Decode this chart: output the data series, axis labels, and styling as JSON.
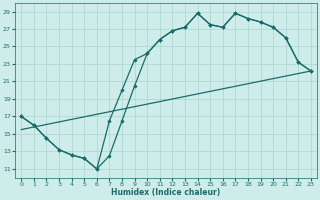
{
  "xlabel": "Humidex (Indice chaleur)",
  "bg_color": "#ceecea",
  "grid_color": "#a8d5d1",
  "line_color": "#1a6b6b",
  "xlim": [
    -0.5,
    23.5
  ],
  "ylim": [
    10,
    30
  ],
  "yticks": [
    11,
    13,
    15,
    17,
    19,
    21,
    23,
    25,
    27,
    29
  ],
  "xticks": [
    0,
    1,
    2,
    3,
    4,
    5,
    6,
    7,
    8,
    9,
    10,
    11,
    12,
    13,
    14,
    15,
    16,
    17,
    18,
    19,
    20,
    21,
    22,
    23
  ],
  "line1_x": [
    0,
    1,
    2,
    3,
    4,
    5,
    6,
    7,
    8,
    9,
    10,
    11,
    12,
    13,
    14,
    15,
    16,
    17,
    18,
    19,
    20,
    21,
    22,
    23
  ],
  "line1_y": [
    17,
    16,
    14.5,
    13.2,
    12.6,
    12.2,
    11.0,
    12.5,
    16.5,
    20.5,
    24.2,
    25.8,
    26.8,
    27.2,
    28.8,
    27.5,
    27.2,
    28.8,
    28.2,
    27.8,
    27.2,
    26.0,
    23.2,
    22.2
  ],
  "line2_x": [
    0,
    1,
    2,
    3,
    4,
    5,
    6,
    7,
    8,
    9,
    10,
    11,
    12,
    13,
    14,
    15,
    16,
    17,
    18,
    19,
    20,
    21,
    22,
    23
  ],
  "line2_y": [
    17,
    16,
    14.5,
    13.2,
    12.6,
    12.2,
    11.0,
    16.5,
    20.0,
    23.5,
    24.2,
    25.8,
    26.8,
    27.2,
    28.8,
    27.5,
    27.2,
    28.8,
    28.2,
    27.8,
    27.2,
    26.0,
    23.2,
    22.2
  ],
  "line3_x": [
    0,
    23
  ],
  "line3_y": [
    15.5,
    22.2
  ]
}
